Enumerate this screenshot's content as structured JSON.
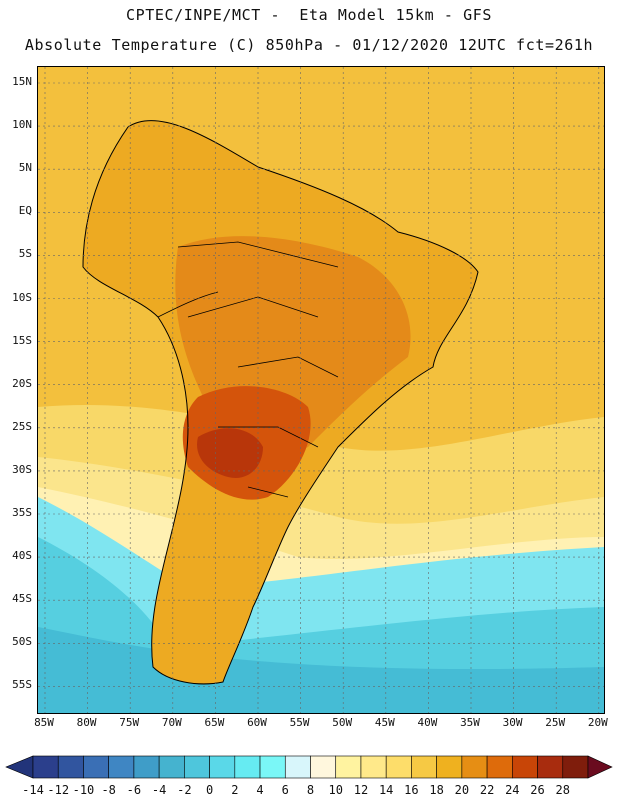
{
  "title_line1": "CPTEC/INPE/MCT -  Eta Model 15km - GFS",
  "title_line2": "Absolute Temperature (C) 850hPa - 01/12/2020 12UTC fct=261h",
  "lat_labels": [
    "15N",
    "10N",
    "5N",
    "EQ",
    "5S",
    "10S",
    "15S",
    "20S",
    "25S",
    "30S",
    "35S",
    "40S",
    "45S",
    "50S",
    "55S"
  ],
  "lon_labels": [
    "85W",
    "80W",
    "75W",
    "70W",
    "65W",
    "60W",
    "55W",
    "50W",
    "45W",
    "40W",
    "35W",
    "30W",
    "25W",
    "20W"
  ],
  "colorbar": {
    "labels": [
      "-14",
      "-12",
      "-10",
      "-8",
      "-6",
      "-4",
      "-2",
      "0",
      "2",
      "4",
      "6",
      "8",
      "10",
      "12",
      "14",
      "16",
      "18",
      "20",
      "22",
      "24",
      "26",
      "28"
    ],
    "colors": [
      "#2b3f8c",
      "#31559f",
      "#3a6fb5",
      "#3f86c3",
      "#3f9dc8",
      "#45b3cf",
      "#4ec6dc",
      "#5ad8e8",
      "#66ebf2",
      "#7af7f7",
      "#d8f6fb",
      "#fff7dd",
      "#fff3a0",
      "#ffe98a",
      "#fddd6a",
      "#f6c944",
      "#efb11f",
      "#e68e14",
      "#de6b0b",
      "#c84507",
      "#a82c0e",
      "#7f1d0c"
    ],
    "low_arrow_color": "#22347a",
    "high_arrow_color": "#6a0b1f"
  },
  "fields": {
    "ocean_warm": "#f3c03d",
    "land_warm": "#edaa22",
    "land_hot": "#e48a19",
    "land_very_hot": "#d4540b",
    "land_extreme": "#b8360a",
    "sub_warm": "#f8d868",
    "sub_mild": "#fbe58c",
    "sub_light": "#fff1b3",
    "cool": "#f9f3d8",
    "cold_water": "#7fe5f0",
    "colder_water": "#56cfe0",
    "coldest_water": "#45bcd5"
  }
}
